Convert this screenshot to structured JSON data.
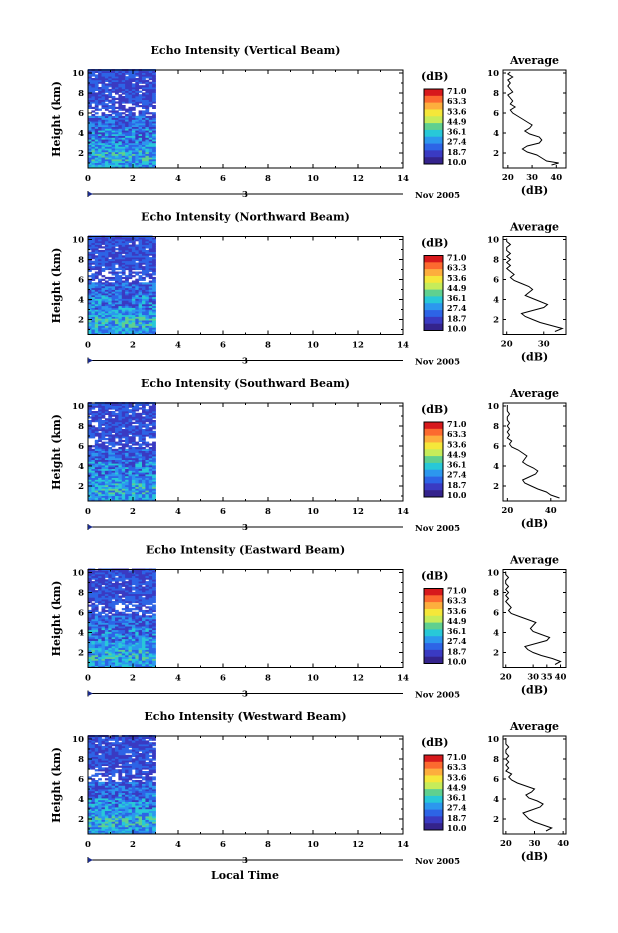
{
  "page": {
    "xlabel": "Local Time"
  },
  "colorbar": {
    "unit": "(dB)",
    "ticks": [
      "71.0",
      "63.3",
      "53.6",
      "44.9",
      "36.1",
      "27.4",
      "18.7",
      "10.0"
    ],
    "colors": [
      "#d7191c",
      "#fc6a2f",
      "#fdae3d",
      "#f5e73a",
      "#c6ec5a",
      "#5fd08f",
      "#28c8d8",
      "#2c97ee",
      "#2d64e6",
      "#3a3ac2",
      "#34238c"
    ]
  },
  "chart_data": [
    {
      "type": "heatmap",
      "title": "Echo Intensity (Vertical Beam)",
      "ylabel": "Height (km)",
      "ylim": [
        0.5,
        10.3
      ],
      "xlim": [
        0,
        14
      ],
      "x_ticks": [
        "0",
        "2",
        "4",
        "6",
        "8",
        "10",
        "12",
        "14"
      ],
      "y_ticks": [
        "2",
        "4",
        "6",
        "8",
        "10"
      ],
      "date_label": "Nov 2005",
      "date_marker": "3",
      "data_x_range": [
        0,
        3
      ],
      "profile": {
        "title": "Average",
        "xlabel": "(dB)",
        "x_ticks": [
          "20",
          "30",
          "40"
        ],
        "xlim": [
          18,
          44
        ],
        "y_ticks": [
          "2",
          "4",
          "6",
          "8",
          "10"
        ],
        "ylim": [
          0.5,
          10.3
        ],
        "heights": [
          0.8,
          1.0,
          1.2,
          1.5,
          1.8,
          2.1,
          2.4,
          2.7,
          3.0,
          3.3,
          3.6,
          3.9,
          4.2,
          4.5,
          4.8,
          5.1,
          5.4,
          5.7,
          6.0,
          6.3,
          6.6,
          6.9,
          7.2,
          7.5,
          7.8,
          8.1,
          8.4,
          8.7,
          9.0,
          9.3,
          9.6,
          9.9,
          10.1
        ],
        "values": [
          38,
          41,
          36,
          34,
          32,
          28,
          26,
          28,
          33,
          34,
          33,
          29,
          27,
          29,
          30,
          28,
          26,
          24,
          22,
          21,
          23,
          21,
          22,
          21,
          20,
          22,
          21,
          20,
          21,
          20,
          22,
          20,
          21
        ]
      }
    },
    {
      "type": "heatmap",
      "title": "Echo Intensity (Northward Beam)",
      "ylabel": "Height (km)",
      "ylim": [
        0.5,
        10.3
      ],
      "xlim": [
        0,
        14
      ],
      "x_ticks": [
        "0",
        "2",
        "4",
        "6",
        "8",
        "10",
        "12",
        "14"
      ],
      "y_ticks": [
        "2",
        "4",
        "6",
        "8",
        "10"
      ],
      "date_label": "Nov 2005",
      "date_marker": "3",
      "data_x_range": [
        0,
        3
      ],
      "profile": {
        "title": "Average",
        "xlabel": "(dB)",
        "x_ticks": [
          "20",
          "30"
        ],
        "xlim": [
          19,
          36
        ],
        "y_ticks": [
          "2",
          "4",
          "6",
          "8",
          "10"
        ],
        "ylim": [
          0.5,
          10.3
        ],
        "heights": [
          0.8,
          1.1,
          1.4,
          1.7,
          2.0,
          2.3,
          2.6,
          2.9,
          3.2,
          3.5,
          3.8,
          4.1,
          4.4,
          4.7,
          5.0,
          5.3,
          5.6,
          5.9,
          6.2,
          6.5,
          6.8,
          7.1,
          7.4,
          7.7,
          8.0,
          8.3,
          8.6,
          8.9,
          9.2,
          9.5,
          9.8,
          10.1
        ],
        "values": [
          33,
          35,
          32,
          29,
          27,
          25,
          24,
          27,
          30,
          31,
          29,
          27,
          25,
          26,
          27,
          26,
          24,
          22,
          21,
          22,
          21,
          20,
          21,
          20,
          21,
          20,
          21,
          20,
          20,
          21,
          20,
          20
        ]
      }
    },
    {
      "type": "heatmap",
      "title": "Echo Intensity (Southward Beam)",
      "ylabel": "Height (km)",
      "ylim": [
        0.5,
        10.3
      ],
      "xlim": [
        0,
        14
      ],
      "x_ticks": [
        "0",
        "2",
        "4",
        "6",
        "8",
        "10",
        "12",
        "14"
      ],
      "y_ticks": [
        "2",
        "4",
        "6",
        "8",
        "10"
      ],
      "date_label": "Nov 2005",
      "date_marker": "3",
      "data_x_range": [
        0,
        3
      ],
      "profile": {
        "title": "Average",
        "xlabel": "(dB)",
        "x_ticks": [
          "20",
          "40"
        ],
        "xlim": [
          18,
          47
        ],
        "y_ticks": [
          "2",
          "4",
          "6",
          "8",
          "10"
        ],
        "ylim": [
          0.5,
          10.3
        ],
        "heights": [
          0.8,
          1.1,
          1.4,
          1.7,
          2.0,
          2.3,
          2.6,
          2.9,
          3.2,
          3.5,
          3.8,
          4.1,
          4.4,
          4.7,
          5.0,
          5.3,
          5.6,
          5.9,
          6.2,
          6.5,
          6.8,
          7.1,
          7.4,
          7.7,
          8.0,
          8.3,
          8.6,
          8.9,
          9.2,
          9.5,
          9.8,
          10.1
        ],
        "values": [
          44,
          40,
          38,
          34,
          31,
          28,
          27,
          30,
          33,
          34,
          32,
          29,
          27,
          28,
          29,
          27,
          25,
          22,
          21,
          22,
          20,
          21,
          20,
          21,
          20,
          21,
          20,
          20,
          21,
          20,
          20,
          20
        ]
      }
    },
    {
      "type": "heatmap",
      "title": "Echo Intensity (Eastward Beam)",
      "ylabel": "Height (km)",
      "ylim": [
        0.5,
        10.3
      ],
      "xlim": [
        0,
        14
      ],
      "x_ticks": [
        "0",
        "2",
        "4",
        "6",
        "8",
        "10",
        "12",
        "14"
      ],
      "y_ticks": [
        "2",
        "4",
        "6",
        "8",
        "10"
      ],
      "date_label": "Nov 2005",
      "date_marker": "3",
      "data_x_range": [
        0,
        3
      ],
      "profile": {
        "title": "Average",
        "xlabel": "(dB)",
        "x_ticks": [
          "20",
          "30",
          "35",
          "40"
        ],
        "xlim": [
          19,
          42
        ],
        "y_ticks": [
          "2",
          "4",
          "6",
          "8",
          "10"
        ],
        "ylim": [
          0.5,
          10.3
        ],
        "heights": [
          0.8,
          1.1,
          1.4,
          1.7,
          2.0,
          2.3,
          2.6,
          2.9,
          3.2,
          3.5,
          3.8,
          4.1,
          4.4,
          4.7,
          5.0,
          5.3,
          5.6,
          5.9,
          6.2,
          6.5,
          6.8,
          7.1,
          7.4,
          7.7,
          8.0,
          8.3,
          8.6,
          8.9,
          9.2,
          9.5,
          9.8,
          10.1
        ],
        "values": [
          38,
          40,
          37,
          33,
          30,
          28,
          27,
          31,
          35,
          36,
          33,
          30,
          29,
          30,
          31,
          28,
          25,
          22,
          21,
          22,
          21,
          20,
          21,
          20,
          21,
          20,
          21,
          20,
          20,
          21,
          20,
          20
        ]
      }
    },
    {
      "type": "heatmap",
      "title": "Echo Intensity (Westward Beam)",
      "ylabel": "Height (km)",
      "ylim": [
        0.5,
        10.3
      ],
      "xlim": [
        0,
        14
      ],
      "x_ticks": [
        "0",
        "2",
        "4",
        "6",
        "8",
        "10",
        "12",
        "14"
      ],
      "y_ticks": [
        "2",
        "4",
        "6",
        "8",
        "10"
      ],
      "date_label": "Nov 2005",
      "date_marker": "3",
      "data_x_range": [
        0,
        3
      ],
      "profile": {
        "title": "Average",
        "xlabel": "(dB)",
        "x_ticks": [
          "20",
          "30",
          "40"
        ],
        "xlim": [
          19,
          41
        ],
        "y_ticks": [
          "2",
          "4",
          "6",
          "8",
          "10"
        ],
        "ylim": [
          0.5,
          10.3
        ],
        "heights": [
          0.8,
          1.1,
          1.4,
          1.7,
          2.0,
          2.3,
          2.6,
          2.9,
          3.2,
          3.5,
          3.8,
          4.1,
          4.4,
          4.7,
          5.0,
          5.3,
          5.6,
          5.9,
          6.2,
          6.5,
          6.8,
          7.1,
          7.4,
          7.7,
          8.0,
          8.3,
          8.6,
          8.9,
          9.2,
          9.5,
          9.8,
          10.1
        ],
        "values": [
          34,
          36,
          33,
          30,
          28,
          27,
          26,
          29,
          32,
          33,
          31,
          28,
          27,
          29,
          30,
          27,
          24,
          22,
          21,
          22,
          20,
          21,
          20,
          21,
          20,
          21,
          20,
          20,
          21,
          20,
          20,
          20
        ]
      }
    }
  ]
}
